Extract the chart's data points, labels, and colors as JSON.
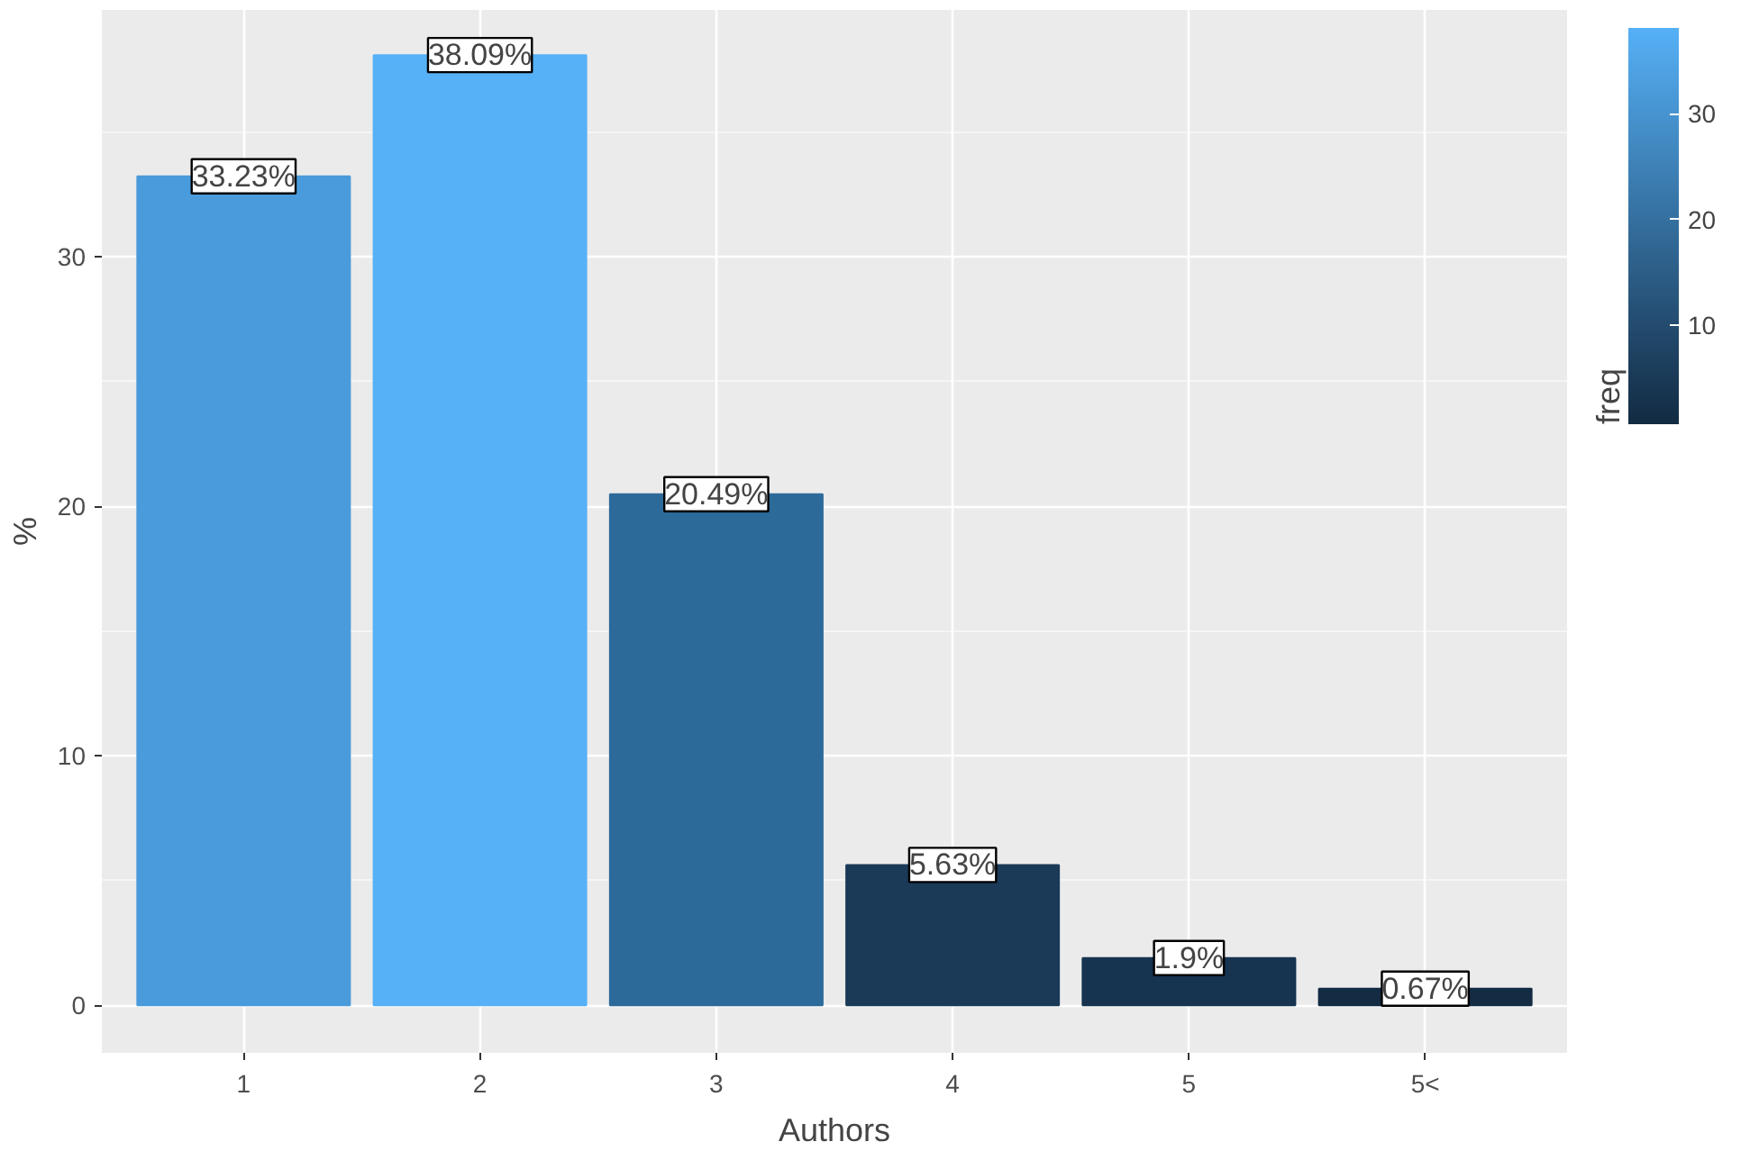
{
  "chart_data": {
    "type": "bar",
    "xlabel": "Authors",
    "ylabel": "%",
    "legend_title": "freq",
    "categories": [
      "1",
      "2",
      "3",
      "4",
      "5",
      "5<"
    ],
    "values": [
      33.23,
      38.09,
      20.49,
      5.63,
      1.9,
      0.67
    ],
    "value_labels": [
      "33.23%",
      "38.09%",
      "20.49%",
      "5.63%",
      "1.9%",
      "0.67%"
    ],
    "colors": [
      "#4a9bdb",
      "#56b1f7",
      "#2c6a9a",
      "#1b3a58",
      "#163350",
      "#132b43"
    ],
    "ylim": [
      -1.9,
      39.9
    ],
    "yticks": [
      0,
      10,
      20,
      30
    ],
    "clim": [
      0.67,
      38.09
    ],
    "cticks": [
      10,
      20,
      30
    ],
    "grid": true
  }
}
